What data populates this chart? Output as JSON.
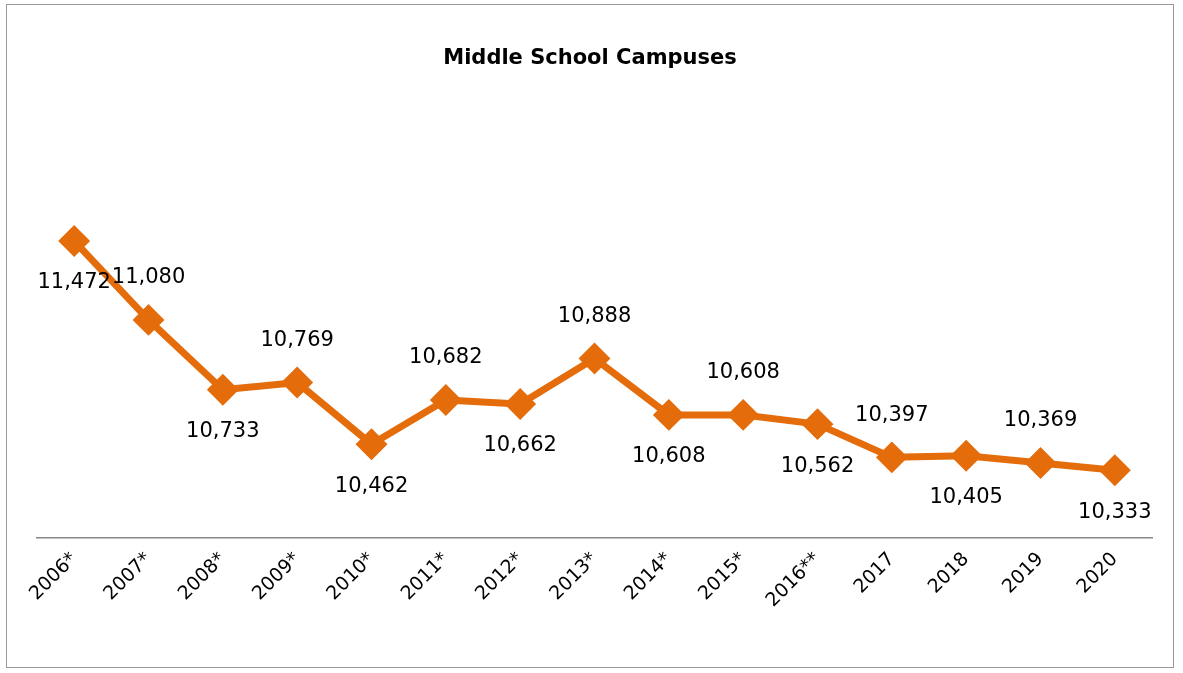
{
  "chart_data": {
    "type": "line",
    "title": "Middle  School Campuses",
    "categories": [
      "2006*",
      "2007*",
      "2008*",
      "2009*",
      "2010*",
      "2011*",
      "2012*",
      "2013*",
      "2014*",
      "2015*",
      "2016**",
      "2017",
      "2018",
      "2019",
      "2020"
    ],
    "series": [
      {
        "color": "#e46c0a",
        "values": [
          11472,
          11080,
          10733,
          10769,
          10462,
          10682,
          10662,
          10888,
          10608,
          10608,
          10562,
          10397,
          10405,
          10369,
          10333
        ],
        "value_labels": [
          "11,472",
          "11,080",
          "10,733",
          "10,769",
          "10,462",
          "10,682",
          "10,662",
          "10,888",
          "10,608",
          "10,608",
          "10,562",
          "10,397",
          "10,405",
          "10,369",
          "10,333"
        ]
      }
    ],
    "marker": "diamond",
    "line_style": "solid",
    "grid": false,
    "legend": false
  }
}
